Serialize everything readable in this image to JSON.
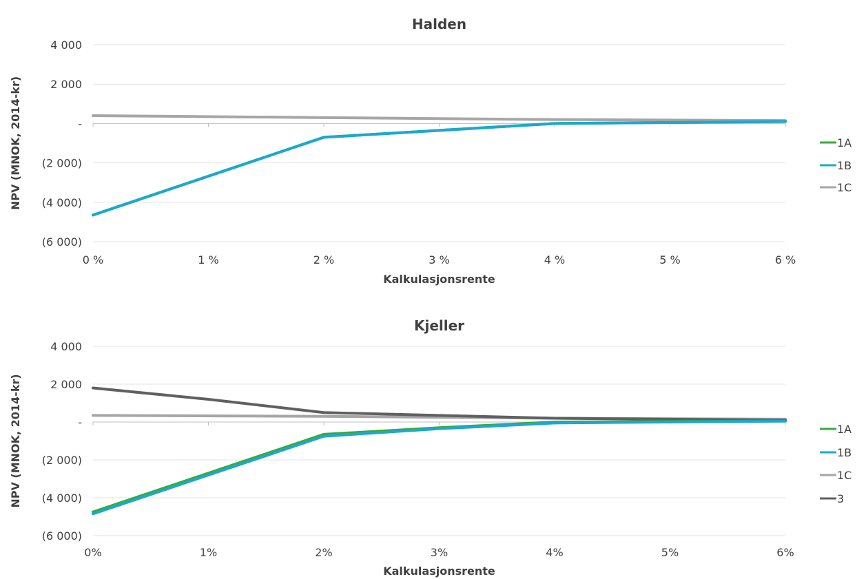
{
  "chart_data": [
    {
      "type": "line",
      "title": "Halden",
      "xlabel": "Kalkulasjonsrente",
      "ylabel": "NPV (MNOK, 2014-kr)",
      "categories": [
        "0 %",
        "1 %",
        "2 %",
        "3 %",
        "4 %",
        "5 %",
        "6 %"
      ],
      "x": [
        0,
        1,
        2,
        3,
        4,
        5,
        6
      ],
      "ylim": [
        -6000,
        4000
      ],
      "yticks": [
        {
          "value": 4000,
          "label": "4 000"
        },
        {
          "value": 2000,
          "label": "2 000"
        },
        {
          "value": 0,
          "label": "-"
        },
        {
          "value": -2000,
          "label": "(2 000)"
        },
        {
          "value": -4000,
          "label": "(4 000)"
        },
        {
          "value": -6000,
          "label": "(6 000)"
        }
      ],
      "grid": true,
      "legend": "right",
      "series": [
        {
          "name": "1A",
          "color": "#3aaa35",
          "x": [
            0,
            2,
            4,
            6
          ],
          "values": [
            -4650,
            -700,
            0,
            100
          ]
        },
        {
          "name": "1B",
          "color": "#1ba8d1",
          "x": [
            0,
            2,
            4,
            6
          ],
          "values": [
            -4650,
            -700,
            0,
            100
          ]
        },
        {
          "name": "1C",
          "color": "#a6a6a6",
          "x": [
            0,
            2,
            4,
            6
          ],
          "values": [
            400,
            300,
            200,
            150
          ]
        }
      ]
    },
    {
      "type": "line",
      "title": "Kjeller",
      "xlabel": "Kalkulasjonsrente",
      "ylabel": "NPV (MNOK, 2014-kr)",
      "categories": [
        "0%",
        "1%",
        "2%",
        "3%",
        "4%",
        "5%",
        "6%"
      ],
      "x": [
        0,
        1,
        2,
        3,
        4,
        5,
        6
      ],
      "ylim": [
        -6000,
        4000
      ],
      "yticks": [
        {
          "value": 4000,
          "label": "4 000"
        },
        {
          "value": 2000,
          "label": "2 000"
        },
        {
          "value": 0,
          "label": "-"
        },
        {
          "value": -2000,
          "label": "(2 000)"
        },
        {
          "value": -4000,
          "label": "(4 000)"
        },
        {
          "value": -6000,
          "label": "(6 000)"
        }
      ],
      "grid": true,
      "legend": "right",
      "series": [
        {
          "name": "1A",
          "color": "#3aaa35",
          "x": [
            0,
            2,
            3,
            4,
            6
          ],
          "values": [
            -4750,
            -650,
            -300,
            0,
            50
          ]
        },
        {
          "name": "1B",
          "color": "#1ba8d1",
          "x": [
            0,
            2,
            3,
            4,
            6
          ],
          "values": [
            -4850,
            -750,
            -350,
            -50,
            50
          ]
        },
        {
          "name": "1C",
          "color": "#a6a6a6",
          "x": [
            0,
            2,
            4,
            6
          ],
          "values": [
            350,
            300,
            200,
            150
          ]
        },
        {
          "name": "3",
          "color": "#606060",
          "x": [
            0,
            1,
            2,
            3,
            4,
            6
          ],
          "values": [
            1800,
            1200,
            500,
            350,
            200,
            100
          ]
        }
      ]
    }
  ]
}
